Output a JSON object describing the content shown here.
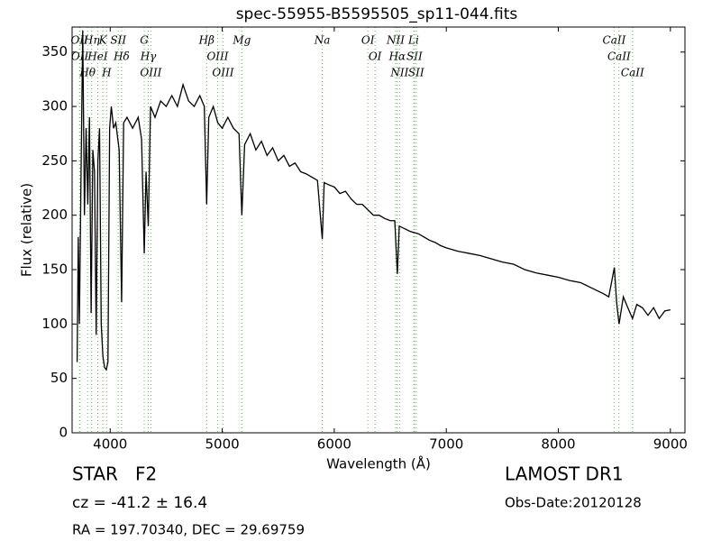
{
  "chart_data": {
    "type": "line",
    "title": "spec-55955-B5595505_sp11-044.fits",
    "x_label": "Wavelength (Å)",
    "y_label": "Flux (relative)",
    "xlim": [
      3660,
      9130
    ],
    "ylim": [
      0,
      373
    ],
    "xticks": [
      4000,
      5000,
      6000,
      7000,
      8000,
      9000
    ],
    "yticks": [
      0,
      50,
      100,
      150,
      200,
      250,
      300,
      350
    ],
    "color": "#000000",
    "x": [
      3705,
      3715,
      3725,
      3740,
      3755,
      3770,
      3785,
      3800,
      3815,
      3830,
      3845,
      3860,
      3875,
      3890,
      3905,
      3920,
      3935,
      3950,
      3965,
      3980,
      3995,
      4010,
      4030,
      4050,
      4080,
      4102,
      4120,
      4150,
      4200,
      4250,
      4280,
      4304,
      4320,
      4340,
      4360,
      4400,
      4450,
      4500,
      4550,
      4600,
      4650,
      4700,
      4750,
      4800,
      4840,
      4861,
      4880,
      4920,
      4960,
      5000,
      5050,
      5100,
      5150,
      5175,
      5200,
      5250,
      5300,
      5350,
      5400,
      5450,
      5500,
      5550,
      5600,
      5650,
      5700,
      5750,
      5800,
      5850,
      5893,
      5910,
      5950,
      6000,
      6050,
      6100,
      6150,
      6200,
      6250,
      6300,
      6350,
      6400,
      6450,
      6500,
      6540,
      6563,
      6580,
      6620,
      6680,
      6750,
      6800,
      6850,
      6900,
      6950,
      7000,
      7100,
      7200,
      7300,
      7400,
      7500,
      7600,
      7700,
      7800,
      7900,
      8000,
      8100,
      8200,
      8300,
      8400,
      8450,
      8500,
      8520,
      8542,
      8580,
      8620,
      8662,
      8700,
      8750,
      8800,
      8850,
      8900,
      8950,
      9000
    ],
    "values": [
      65,
      180,
      100,
      240,
      370,
      200,
      280,
      210,
      290,
      110,
      260,
      240,
      90,
      250,
      280,
      100,
      70,
      60,
      58,
      65,
      280,
      300,
      280,
      285,
      260,
      120,
      285,
      290,
      280,
      290,
      270,
      165,
      240,
      190,
      300,
      290,
      305,
      300,
      310,
      300,
      320,
      305,
      300,
      310,
      300,
      210,
      290,
      300,
      285,
      280,
      290,
      280,
      275,
      200,
      265,
      275,
      260,
      268,
      255,
      262,
      250,
      255,
      245,
      248,
      240,
      238,
      235,
      232,
      178,
      230,
      228,
      226,
      220,
      222,
      215,
      210,
      210,
      205,
      200,
      200,
      197,
      195,
      195,
      146,
      190,
      188,
      185,
      183,
      180,
      177,
      175,
      172,
      170,
      167,
      165,
      163,
      160,
      157,
      155,
      150,
      147,
      145,
      143,
      140,
      138,
      133,
      128,
      125,
      152,
      120,
      100,
      125,
      115,
      105,
      118,
      115,
      108,
      115,
      105,
      112,
      113
    ],
    "lines": {
      "color": "#66bb66",
      "labels": [
        "OII",
        "OII",
        "Hθ",
        "Hη",
        "HeI",
        "K",
        "H",
        "SII",
        "Hδ",
        "G",
        "Hγ",
        "OIII",
        "Hβ",
        "OIII",
        "OIII",
        "Mg",
        "Na",
        "OI",
        "OI",
        "NII",
        "Hα",
        "NII",
        "Li",
        "SII",
        "SII",
        "CaII",
        "CaII",
        "CaII"
      ],
      "wavelengths": [
        3726,
        3729,
        3798,
        3835,
        3889,
        3934,
        3969,
        4072,
        4102,
        4304,
        4340,
        4363,
        4861,
        4959,
        5007,
        5175,
        5893,
        6300,
        6364,
        6548,
        6563,
        6583,
        6708,
        6716,
        6731,
        8498,
        8542,
        8662
      ]
    },
    "footer": {
      "object": "STAR   F2",
      "survey": "LAMOST DR1",
      "cz": "cz = -41.2 ± 16.4",
      "obs_date": "Obs-Date:20120128",
      "coords": "RA = 197.70340, DEC = 29.69759"
    }
  }
}
